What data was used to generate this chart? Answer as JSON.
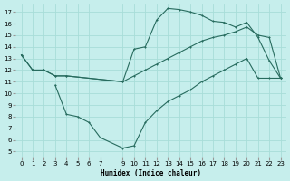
{
  "xlabel": "Humidex (Indice chaleur)",
  "bg_color": "#c6eeec",
  "grid_color": "#a8ddd8",
  "line_color": "#276b5e",
  "xlim": [
    -0.5,
    23.5
  ],
  "ylim": [
    4.5,
    17.7
  ],
  "xticks": [
    0,
    1,
    2,
    3,
    4,
    5,
    6,
    7,
    9,
    10,
    11,
    12,
    13,
    14,
    15,
    16,
    17,
    18,
    19,
    20,
    21,
    22,
    23
  ],
  "yticks": [
    5,
    6,
    7,
    8,
    9,
    10,
    11,
    12,
    13,
    14,
    15,
    16,
    17
  ],
  "line1_x": [
    0,
    1,
    2,
    3,
    4,
    9,
    10,
    11,
    12,
    13,
    14,
    15,
    16,
    17,
    18,
    19,
    20,
    21,
    22,
    23
  ],
  "line1_y": [
    13.3,
    12.0,
    12.0,
    11.5,
    11.5,
    11.0,
    13.8,
    14.0,
    16.3,
    17.3,
    17.2,
    17.0,
    16.7,
    16.2,
    16.1,
    15.7,
    16.1,
    14.8,
    12.8,
    11.3
  ],
  "line2_x": [
    0,
    1,
    2,
    3,
    4,
    9,
    10,
    11,
    12,
    13,
    14,
    15,
    16,
    17,
    18,
    19,
    20,
    21,
    22,
    23
  ],
  "line2_y": [
    13.3,
    12.0,
    12.0,
    11.5,
    11.5,
    11.0,
    11.5,
    12.0,
    12.5,
    13.0,
    13.5,
    14.0,
    14.5,
    14.8,
    15.0,
    15.3,
    15.7,
    15.0,
    14.8,
    11.3
  ],
  "line3_x": [
    3,
    4,
    5,
    6,
    7,
    9,
    10,
    11,
    12,
    13,
    14,
    15,
    16,
    17,
    18,
    19,
    20,
    21,
    22,
    23
  ],
  "line3_y": [
    10.7,
    8.2,
    8.0,
    7.5,
    6.2,
    5.3,
    5.5,
    7.5,
    8.5,
    9.3,
    9.8,
    10.3,
    11.0,
    11.5,
    12.0,
    12.5,
    13.0,
    11.3,
    11.3,
    11.3
  ]
}
